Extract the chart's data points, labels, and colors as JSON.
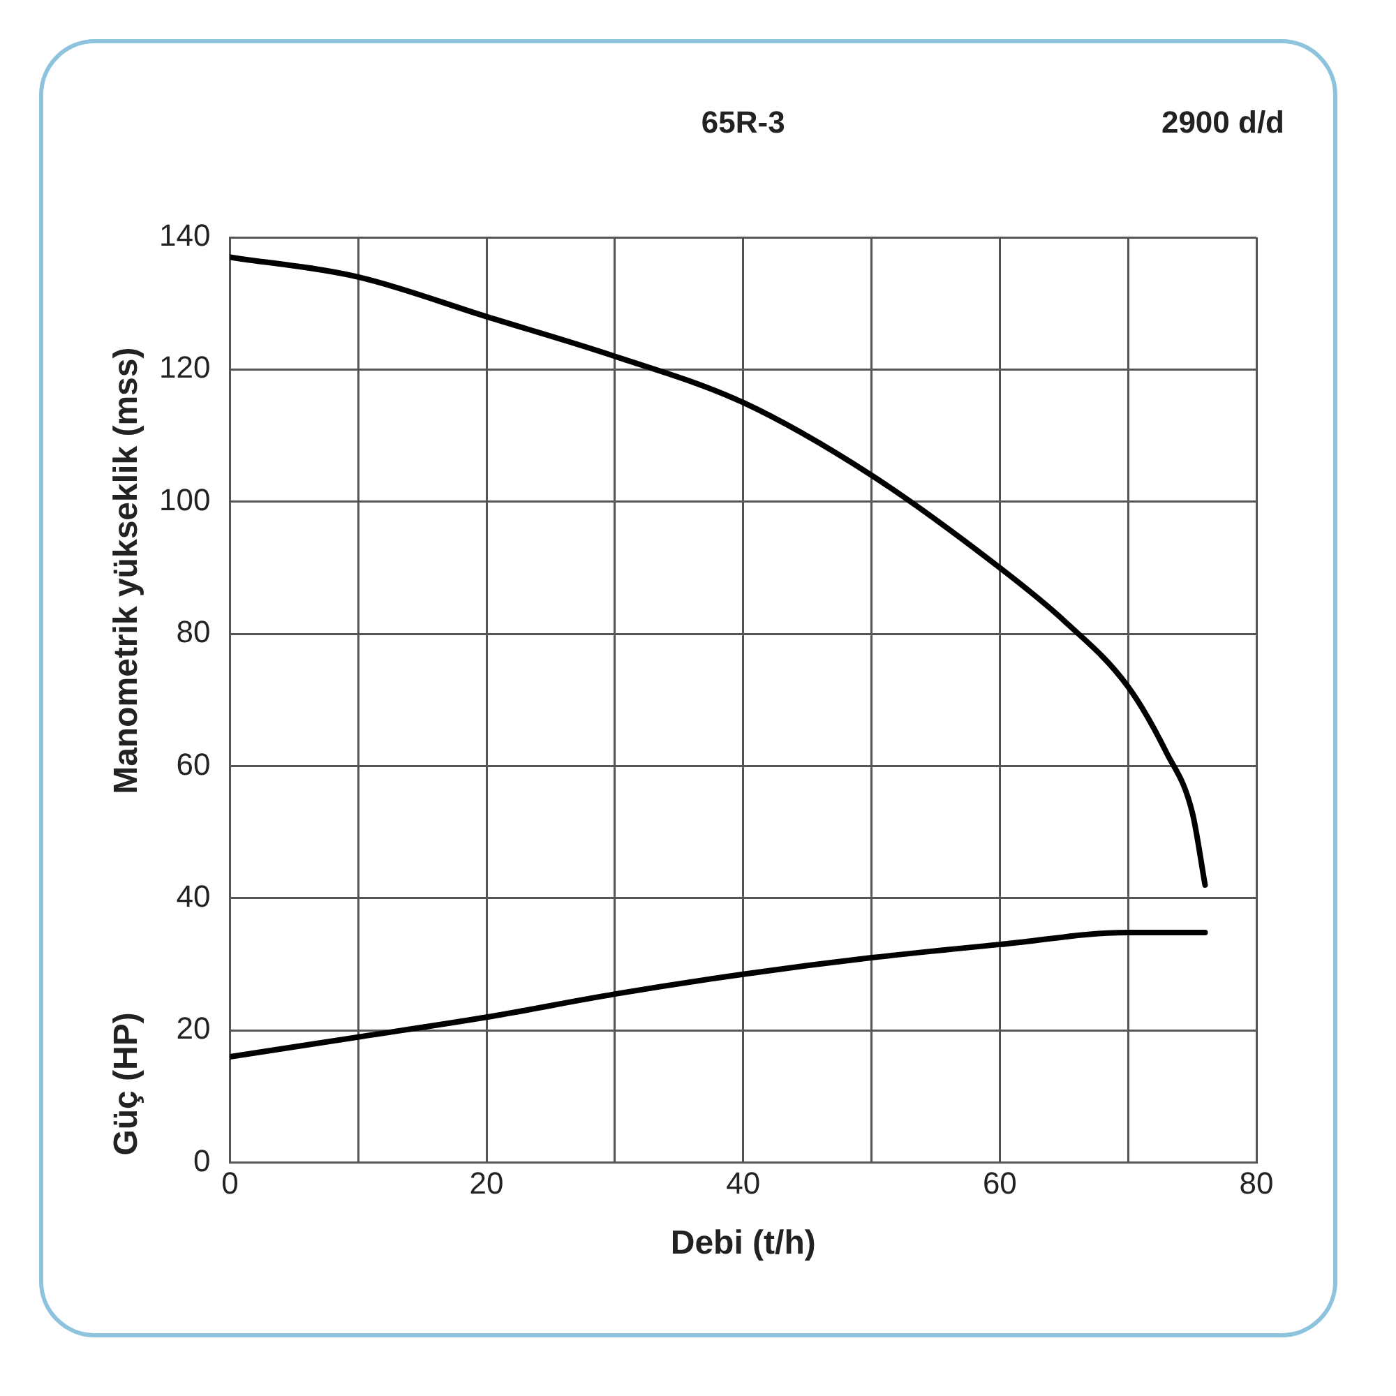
{
  "chart_data": {
    "type": "line",
    "title": "65R-3",
    "subtitle": "2900 d/d",
    "xlabel": "Debi (t/h)",
    "ylabel": "Manometrik yükseklik (mss)",
    "annotations": [
      "Güç (HP)"
    ],
    "xlim": [
      0,
      80
    ],
    "xticks": [
      0,
      {
        "value": 10,
        "label": null
      },
      20,
      {
        "value": 30,
        "label": null
      },
      40,
      {
        "value": 50,
        "label": null
      },
      60,
      {
        "value": 70,
        "label": null
      },
      80
    ],
    "ylim": [
      0,
      140
    ],
    "yticks": [
      0,
      20,
      40,
      60,
      80,
      100,
      120,
      140
    ],
    "grid": true,
    "legend": false,
    "marker": "none",
    "line_style": "solid",
    "series": [
      {
        "color": "#000000",
        "x": [
          0,
          10,
          20,
          30,
          40,
          50,
          60,
          65,
          70,
          73,
          75,
          76
        ],
        "values": [
          137,
          134,
          128,
          122,
          115,
          104,
          90,
          82,
          72,
          62,
          53,
          42
        ]
      },
      {
        "color": "#000000",
        "x": [
          0,
          10,
          20,
          30,
          40,
          50,
          60,
          70,
          76
        ],
        "values": [
          16,
          19,
          22,
          25.5,
          28.5,
          31,
          33,
          34.8,
          34.8
        ]
      }
    ]
  }
}
